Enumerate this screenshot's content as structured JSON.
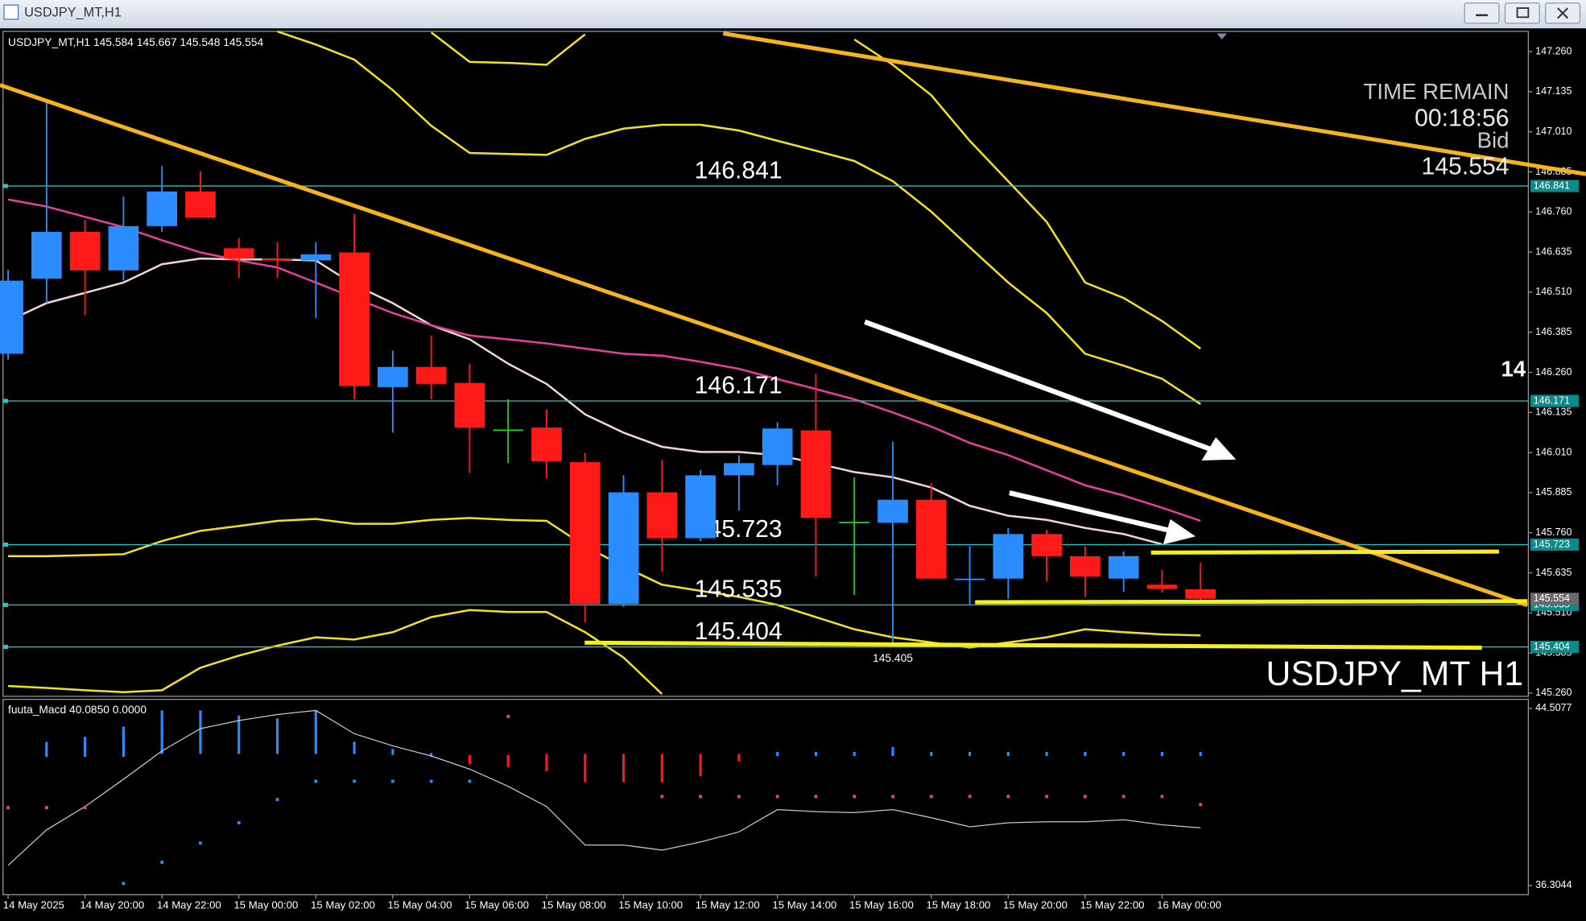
{
  "window": {
    "title": "USDJPY_MT,H1"
  },
  "chart_data": [
    {
      "type": "candlestick",
      "symbol": "USDJPY_MT,H1",
      "ohlc": [
        145.584,
        145.667,
        145.548,
        145.554
      ],
      "categories": [
        "14 May 2025",
        null,
        "14 May 20:00",
        null,
        "14 May 22:00",
        null,
        "15 May 00:00",
        null,
        "15 May 02:00",
        null,
        "15 May 04:00",
        null,
        "15 May 06:00",
        null,
        "15 May 08:00",
        null,
        "15 May 10:00",
        null,
        "15 May 12:00",
        null,
        "15 May 14:00",
        null,
        "15 May 16:00",
        null,
        "15 May 18:00",
        null,
        "15 May 20:00",
        null,
        "15 May 22:00",
        null,
        "16 May 00:00",
        null
      ],
      "open": [
        146.318,
        146.552,
        146.698,
        146.578,
        146.716,
        146.824,
        146.647,
        146.615,
        146.609,
        146.634,
        146.214,
        146.277,
        146.227,
        146.082,
        146.088,
        145.98,
        145.538,
        145.886,
        145.743,
        145.939,
        145.971,
        146.079,
        145.794,
        145.791,
        145.863,
        145.614,
        145.617,
        145.756,
        145.687,
        145.617,
        145.598,
        145.584
      ],
      "high": [
        146.58,
        147.108,
        146.735,
        146.808,
        146.903,
        146.887,
        146.679,
        146.666,
        146.666,
        146.754,
        146.328,
        146.375,
        146.287,
        146.176,
        146.145,
        146.009,
        145.939,
        145.987,
        145.955,
        146.002,
        146.104,
        146.255,
        145.933,
        146.044,
        145.914,
        145.718,
        145.775,
        145.769,
        145.718,
        145.702,
        145.645,
        145.667
      ],
      "low": [
        146.3,
        146.476,
        146.438,
        146.546,
        146.698,
        146.742,
        146.555,
        146.555,
        146.429,
        146.176,
        146.072,
        146.176,
        145.946,
        145.977,
        145.93,
        145.481,
        145.529,
        145.639,
        145.734,
        145.829,
        145.908,
        145.623,
        145.566,
        145.405,
        145.617,
        145.535,
        145.554,
        145.608,
        145.56,
        145.576,
        145.573,
        145.548
      ],
      "close": [
        146.546,
        146.698,
        146.578,
        146.716,
        146.824,
        146.742,
        146.615,
        146.609,
        146.628,
        146.217,
        146.277,
        146.224,
        146.088,
        146.082,
        145.983,
        145.538,
        145.886,
        145.743,
        145.939,
        145.977,
        146.085,
        145.807,
        145.794,
        145.863,
        145.617,
        145.617,
        145.756,
        145.687,
        145.623,
        145.687,
        145.585,
        145.554
      ],
      "up_color": "#2a8cff",
      "down_color": "#ff1a1a",
      "doji_color": "#22cc22",
      "overlays": [
        {
          "color": "#f2d6d0",
          "values": [
            146.42,
            146.476,
            146.508,
            146.54,
            146.597,
            146.615,
            146.612,
            146.612,
            146.609,
            146.533,
            146.476,
            146.407,
            146.363,
            146.287,
            146.224,
            146.129,
            146.072,
            146.028,
            146.012,
            146.012,
            146.002,
            145.977,
            145.949,
            145.933,
            145.901,
            145.844,
            145.813,
            145.8,
            145.775,
            145.756,
            145.724,
            null
          ]
        },
        {
          "color": "#e8409a",
          "values": [
            146.799,
            146.777,
            146.745,
            146.713,
            146.672,
            146.634,
            146.609,
            146.587,
            146.54,
            146.492,
            146.445,
            146.407,
            146.375,
            146.363,
            146.35,
            146.334,
            146.318,
            146.312,
            146.293,
            146.271,
            146.239,
            146.208,
            146.176,
            146.135,
            146.091,
            146.04,
            146.002,
            145.955,
            145.908,
            145.876,
            145.838,
            145.797
          ]
        },
        {
          "color": "#f5e21c",
          "values": [
            null,
            null,
            null,
            null,
            null,
            null,
            null,
            147.323,
            147.282,
            147.235,
            147.14,
            147.029,
            146.944,
            146.941,
            146.938,
            146.988,
            147.02,
            147.032,
            147.032,
            147.014,
            146.982,
            146.951,
            146.919,
            146.856,
            146.761,
            146.65,
            146.54,
            146.445,
            146.318,
            146.281,
            146.24,
            146.161
          ]
        },
        {
          "color": "#f5e21c",
          "values": [
            null,
            null,
            null,
            null,
            null,
            null,
            null,
            null,
            null,
            null,
            null,
            147.32,
            147.228,
            147.225,
            147.219,
            147.314,
            null,
            null,
            null,
            null,
            null,
            null,
            147.298,
            147.219,
            147.124,
            146.982,
            146.856,
            146.729,
            146.54,
            146.492,
            146.42,
            146.334
          ]
        },
        {
          "color": "#f5e21c",
          "values": [
            145.687,
            145.687,
            145.69,
            145.693,
            145.734,
            145.766,
            145.781,
            145.797,
            145.803,
            145.788,
            145.788,
            145.8,
            145.806,
            145.8,
            145.797,
            145.718,
            145.655,
            145.598,
            145.579,
            145.56,
            145.535,
            145.497,
            145.459,
            145.434,
            145.418,
            145.402,
            145.418,
            145.434,
            145.459,
            145.45,
            145.443,
            145.44
          ]
        },
        {
          "color": "#f5e21c",
          "values": [
            145.282,
            145.276,
            145.269,
            145.263,
            145.269,
            145.339,
            145.377,
            145.408,
            145.434,
            145.427,
            145.45,
            145.497,
            145.519,
            145.513,
            145.513,
            145.45,
            145.371,
            145.257,
            null,
            null,
            null,
            null,
            null,
            null,
            null,
            null,
            null,
            null,
            null,
            null,
            null,
            null
          ]
        }
      ],
      "levels": [
        146.841,
        146.171,
        145.723,
        145.535,
        145.404
      ],
      "level_color": "#26c6c6",
      "low_label": 145.405,
      "timer": {
        "title": "TIME REMAIN",
        "time": "00:18:56",
        "label": "Bid",
        "bid": 145.554
      },
      "watermark": "USDJPY_MT H1",
      "edge_text": "14",
      "ylim": [
        145.25,
        147.32
      ],
      "yticks": [
        {
          "value": 147.26,
          "label": "147.260"
        },
        147.135,
        {
          "value": 147.01,
          "label": "147.010"
        },
        146.885,
        {
          "value": 146.76,
          "label": "146.760"
        },
        146.635,
        {
          "value": 146.51,
          "label": "146.510"
        },
        146.385,
        {
          "value": 146.26,
          "label": "146.260"
        },
        146.135,
        {
          "value": 146.01,
          "label": "146.010"
        },
        145.885,
        {
          "value": 145.76,
          "label": "145.760"
        },
        145.635,
        {
          "value": 145.51,
          "label": "145.510"
        },
        145.385,
        {
          "value": 145.26,
          "label": "145.260"
        }
      ]
    },
    {
      "type": "macd",
      "label": "fuuta_Macd 40.0850 0.0000",
      "ylim": [
        35.88,
        44.88
      ],
      "yticks": [
        44.5077,
        36.3044
      ],
      "line_color": "#c8c8c8",
      "values": [
        37.242,
        38.883,
        39.961,
        41.226,
        42.539,
        43.57,
        43.945,
        44.226,
        44.414,
        43.336,
        42.773,
        42.304,
        41.695,
        40.898,
        39.961,
        38.179,
        38.179,
        37.945,
        38.32,
        38.789,
        39.82,
        39.726,
        39.679,
        39.82,
        39.445,
        39.023,
        39.211,
        39.258,
        39.258,
        39.351,
        39.117,
        38.976
      ],
      "histogram": [
        null,
        [
          42.258,
          42.961
        ],
        [
          42.258,
          43.195
        ],
        [
          42.258,
          43.664
        ],
        [
          42.398,
          44.414
        ],
        [
          42.398,
          44.414
        ],
        [
          42.398,
          44.18
        ],
        [
          42.398,
          44.039
        ],
        [
          42.398,
          44.414
        ],
        [
          42.398,
          42.961
        ],
        [
          42.351,
          42.633
        ],
        [
          42.258,
          42.445
        ],
        [
          41.93,
          42.351
        ],
        [
          41.789,
          42.351
        ],
        [
          41.601,
          42.398
        ],
        [
          41.086,
          42.398
        ],
        [
          41.086,
          42.398
        ],
        [
          41.086,
          42.398
        ],
        [
          41.367,
          42.398
        ],
        [
          42.07,
          42.398
        ],
        [
          42.304,
          42.492
        ],
        [
          42.304,
          42.492
        ],
        [
          42.304,
          42.492
        ],
        [
          42.304,
          42.726
        ],
        [
          42.304,
          42.492
        ],
        [
          42.304,
          42.492
        ],
        [
          42.304,
          42.492
        ],
        [
          42.304,
          42.492
        ],
        [
          42.304,
          42.492
        ],
        [
          42.304,
          42.492
        ],
        [
          42.304,
          42.492
        ],
        [
          42.304,
          42.492
        ]
      ],
      "histogram_colors": [
        null,
        "#2a8cff",
        "#2a8cff",
        "#2a8cff",
        "#2a8cff",
        "#2a8cff",
        "#2a8cff",
        "#2a8cff",
        "#2a8cff",
        "#2a8cff",
        "#2a8cff",
        "#2a8cff",
        "#ff1a1a",
        "#ff1a1a",
        "#ff1a1a",
        "#ff1a1a",
        "#ff1a1a",
        "#ff1a1a",
        "#ff1a1a",
        "#ff1a1a",
        "#2a8cff",
        "#2a8cff",
        "#2a8cff",
        "#2a8cff",
        "#2a8cff",
        "#2a8cff",
        "#2a8cff",
        "#2a8cff",
        "#2a8cff",
        "#2a8cff",
        "#2a8cff",
        "#2a8cff"
      ],
      "signal": [
        39.914,
        39.914,
        39.914,
        36.398,
        37.383,
        38.273,
        39.211,
        40.289,
        41.133,
        41.133,
        41.133,
        41.133,
        41.133,
        44.133,
        null,
        null,
        null,
        40.43,
        40.43,
        40.43,
        40.43,
        40.43,
        40.43,
        40.43,
        40.43,
        40.43,
        40.43,
        40.43,
        40.43,
        40.43,
        40.43,
        40.055
      ],
      "signal_colors": [
        "#e8409a",
        "#e8409a",
        "#e8409a",
        "#2a8cff",
        "#2a8cff",
        "#2a8cff",
        "#2a8cff",
        "#2a8cff",
        "#2a8cff",
        "#2a8cff",
        "#2a8cff",
        "#2a8cff",
        "#2a8cff",
        "#e8409a",
        null,
        null,
        null,
        "#e8409a",
        "#e8409a",
        "#e8409a",
        "#e8409a",
        "#e8409a",
        "#e8409a",
        "#e8409a",
        "#e8409a",
        "#e8409a",
        "#e8409a",
        "#e8409a",
        "#e8409a",
        "#e8409a",
        "#e8409a",
        "#e8409a"
      ]
    }
  ]
}
